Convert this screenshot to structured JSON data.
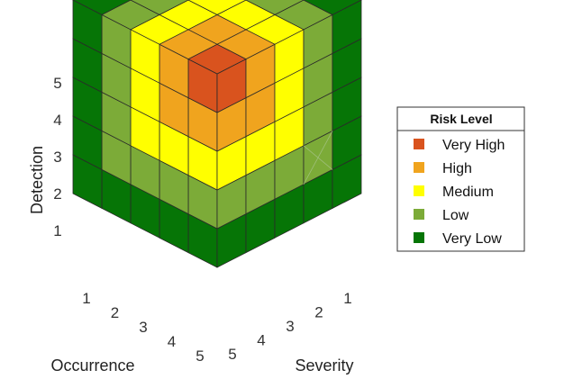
{
  "axes": {
    "detection": {
      "title": "Detection",
      "ticks": [
        "1",
        "2",
        "3",
        "4",
        "5"
      ]
    },
    "occurrence": {
      "title": "Occurrence",
      "ticks": [
        "1",
        "2",
        "3",
        "4",
        "5"
      ]
    },
    "severity": {
      "title": "Severity",
      "ticks": [
        "1",
        "2",
        "3",
        "4",
        "5"
      ]
    }
  },
  "legend": {
    "title": "Risk Level",
    "items": [
      {
        "label": "Very High",
        "color": "#d9531e"
      },
      {
        "label": "High",
        "color": "#f0a41e"
      },
      {
        "label": "Medium",
        "color": "#ffff00"
      },
      {
        "label": "Low",
        "color": "#7cab38"
      },
      {
        "label": "Very Low",
        "color": "#067506"
      }
    ]
  },
  "risk_cube": {
    "size": 5,
    "levels": [
      "Very High",
      "High",
      "Medium",
      "Low",
      "Very Low"
    ],
    "edge_color": "#2a2a2a"
  }
}
